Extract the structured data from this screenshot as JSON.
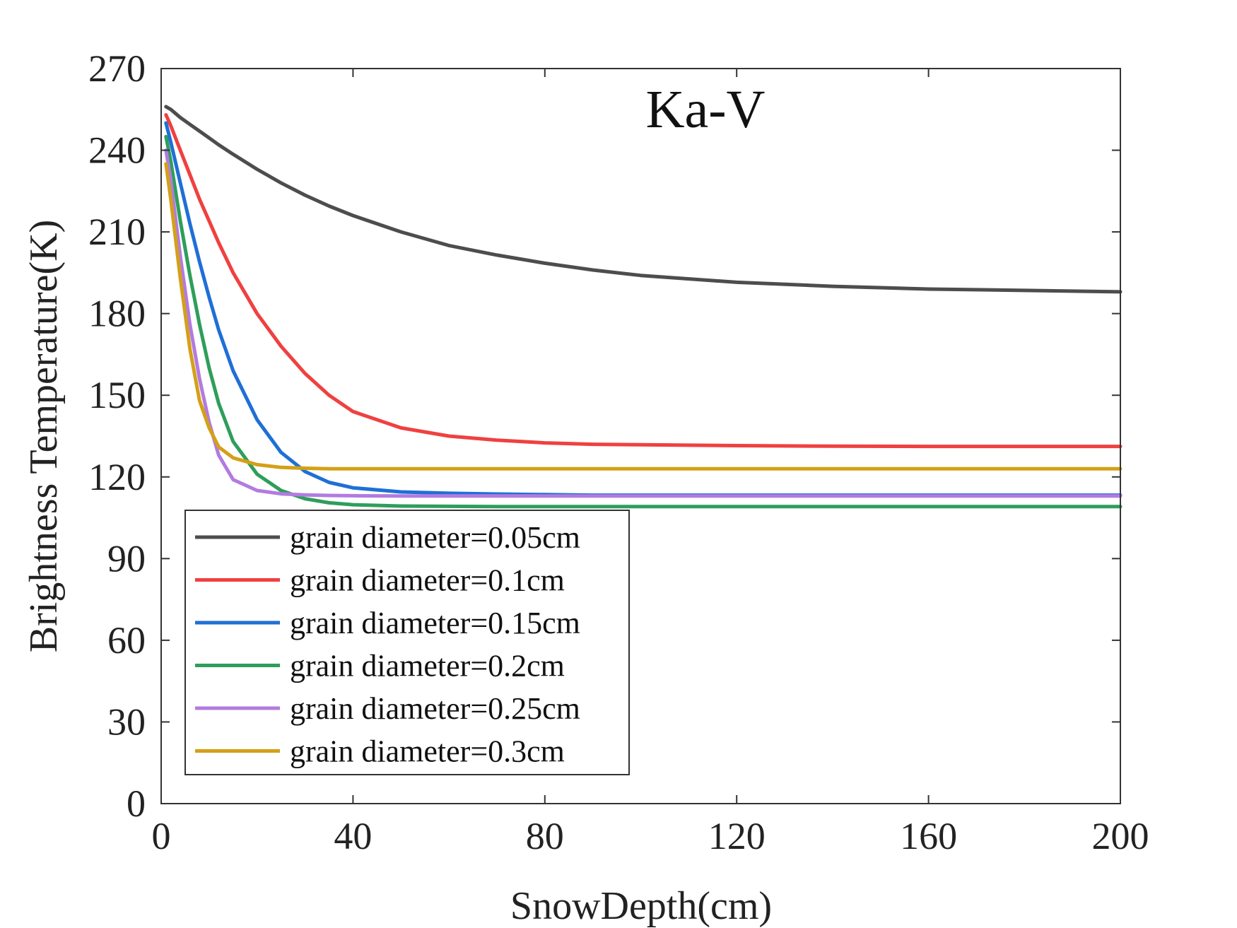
{
  "chart_data": {
    "type": "line",
    "title": "Ka-V",
    "xlabel": "SnowDepth(cm)",
    "ylabel": "Brightness Temperature(K)",
    "xlim": [
      0,
      200
    ],
    "ylim": [
      0,
      270
    ],
    "xticks": [
      0,
      40,
      80,
      120,
      160,
      200
    ],
    "yticks": [
      0,
      30,
      60,
      90,
      120,
      150,
      180,
      210,
      240,
      270
    ],
    "grid": false,
    "legend_position": "bottom-left",
    "x": [
      1,
      2,
      4,
      6,
      8,
      10,
      12,
      15,
      20,
      25,
      30,
      35,
      40,
      50,
      60,
      70,
      80,
      90,
      100,
      120,
      140,
      160,
      180,
      200
    ],
    "series": [
      {
        "name": "grain diameter=0.05cm",
        "color": "#4d4d4d",
        "values": [
          256,
          255,
          252,
          249.5,
          247,
          244.5,
          242,
          238.5,
          233,
          228,
          223.5,
          219.5,
          216,
          210,
          205,
          201.5,
          198.5,
          196,
          194,
          191.5,
          190,
          189,
          188.5,
          188
        ]
      },
      {
        "name": "grain diameter=0.1cm",
        "color": "#f04040",
        "values": [
          253,
          249,
          240,
          231,
          222,
          214,
          206,
          195,
          180,
          168,
          158,
          150,
          144,
          138,
          135,
          133.5,
          132.5,
          132,
          131.8,
          131.5,
          131.3,
          131.2,
          131.2,
          131.2
        ]
      },
      {
        "name": "grain diameter=0.15cm",
        "color": "#1f6fd6",
        "values": [
          250,
          243,
          228,
          213,
          199,
          186,
          174,
          159,
          141,
          129,
          122,
          118,
          116,
          114.5,
          114,
          113.7,
          113.5,
          113.3,
          113.3,
          113.3,
          113.3,
          113.3,
          113.3,
          113.3
        ]
      },
      {
        "name": "grain diameter=0.2cm",
        "color": "#2e9e5b",
        "values": [
          245,
          236,
          214,
          194,
          176,
          160,
          147,
          133,
          121,
          115,
          112,
          110.5,
          109.8,
          109.3,
          109.2,
          109.1,
          109.1,
          109.1,
          109.1,
          109.1,
          109.1,
          109.1,
          109.1,
          109.1
        ]
      },
      {
        "name": "grain diameter=0.25cm",
        "color": "#b27be0",
        "values": [
          240,
          229,
          201,
          176,
          156,
          140,
          128,
          119,
          115,
          113.8,
          113.4,
          113.2,
          113.1,
          113,
          113,
          113,
          113,
          113,
          113,
          113,
          113,
          113,
          113,
          113
        ]
      },
      {
        "name": "grain diameter=0.3cm",
        "color": "#d4a017",
        "values": [
          235,
          222,
          193,
          167,
          148,
          138,
          131,
          127,
          124.5,
          123.5,
          123.2,
          123,
          123,
          123,
          123,
          123,
          123,
          123,
          123,
          123,
          123,
          123,
          123,
          123
        ]
      }
    ]
  }
}
